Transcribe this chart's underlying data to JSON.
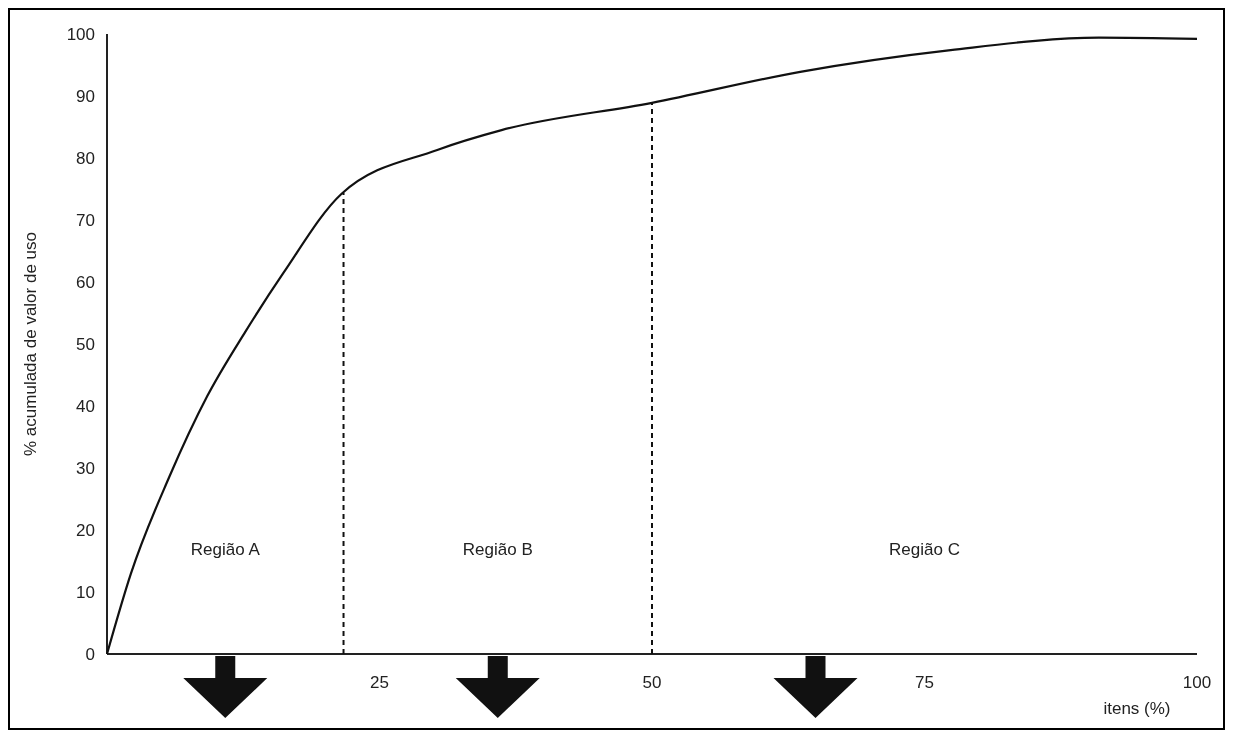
{
  "chart_data": {
    "type": "line",
    "xlabel": "itens (%)",
    "ylabel": "% acumulada de valor de uso",
    "x": [
      0,
      2.2,
      5.7,
      9.2,
      12.7,
      16.2,
      21.5,
      30.3,
      36.2,
      50,
      63.6,
      77.4,
      91,
      100
    ],
    "series": [
      {
        "color": "#111111",
        "values": [
          0,
          13,
          28.5,
          41.6,
          52,
          61.5,
          74.2,
          81.3,
          84.5,
          88.9,
          93.9,
          97.4,
          99.4,
          99.2
        ]
      }
    ],
    "xlim": [
      0,
      100
    ],
    "ylim": [
      0,
      100
    ],
    "xticks": [
      25,
      50,
      75,
      100
    ],
    "yticks": [
      0,
      10,
      20,
      30,
      40,
      50,
      60,
      70,
      80,
      90,
      100
    ],
    "grid": false,
    "marker": "none",
    "line_style": "solid",
    "ref_lines": [
      {
        "axis": "x",
        "value": 21.7,
        "line_style": "dashed",
        "color": "#111111"
      },
      {
        "axis": "x",
        "value": 50,
        "line_style": "dashed",
        "color": "#111111"
      }
    ],
    "annotations": [
      "Região A",
      "Região B",
      "Região C"
    ]
  }
}
